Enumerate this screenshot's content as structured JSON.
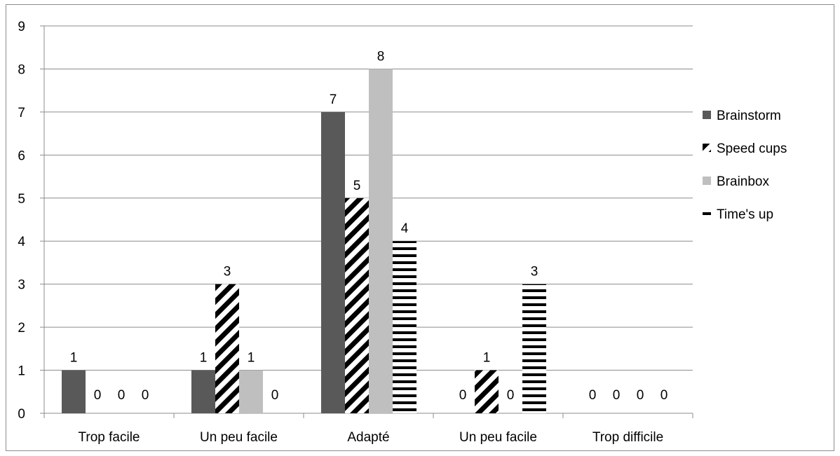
{
  "chart_data": {
    "type": "bar",
    "categories": [
      "Trop facile",
      "Un peu facile",
      "Adapté",
      "Un peu facile",
      "Trop difficile"
    ],
    "series": [
      {
        "name": "Brainstorm",
        "values": [
          1,
          1,
          7,
          0,
          0
        ],
        "color": "#595959",
        "pattern": "solid"
      },
      {
        "name": "Speed cups",
        "values": [
          0,
          3,
          5,
          1,
          0
        ],
        "color": "#000000",
        "pattern": "diagonal-stripes"
      },
      {
        "name": "Brainbox",
        "values": [
          0,
          1,
          8,
          0,
          0
        ],
        "color": "#bfbfbf",
        "pattern": "solid"
      },
      {
        "name": "Time's up",
        "values": [
          0,
          0,
          4,
          3,
          0
        ],
        "color": "#000000",
        "pattern": "horizontal-stripes"
      }
    ],
    "ylim": [
      0,
      9
    ],
    "yticks": [
      "0",
      "1",
      "2",
      "3",
      "4",
      "5",
      "6",
      "7",
      "8",
      "9"
    ],
    "grid": true,
    "legend_position": "right",
    "data_labels": true
  }
}
